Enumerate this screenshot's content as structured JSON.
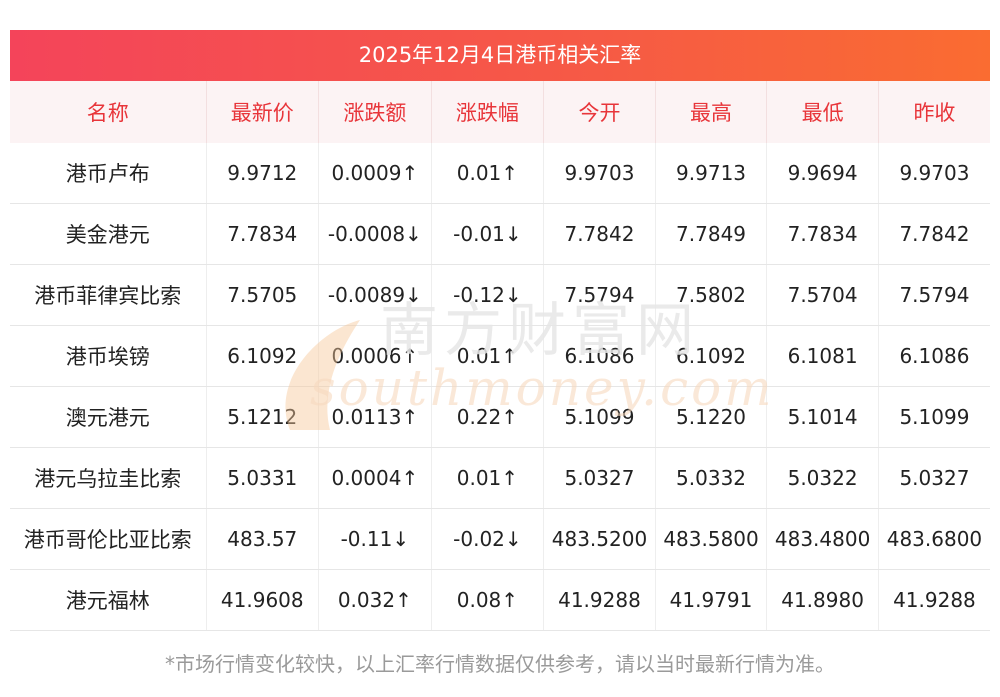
{
  "title": "2025年12月4日港币相关汇率",
  "headers": [
    "名称",
    "最新价",
    "涨跌额",
    "涨跌幅",
    "今开",
    "最高",
    "最低",
    "昨收"
  ],
  "rows": [
    {
      "name": "港币卢布",
      "latest": "9.9712",
      "change": "0.0009↑",
      "pct": "0.01↑",
      "open": "9.9703",
      "high": "9.9713",
      "low": "9.9694",
      "prev": "9.9703",
      "dir": "up"
    },
    {
      "name": "美金港元",
      "latest": "7.7834",
      "change": "-0.0008↓",
      "pct": "-0.01↓",
      "open": "7.7842",
      "high": "7.7849",
      "low": "7.7834",
      "prev": "7.7842",
      "dir": "down"
    },
    {
      "name": "港币菲律宾比索",
      "latest": "7.5705",
      "change": "-0.0089↓",
      "pct": "-0.12↓",
      "open": "7.5794",
      "high": "7.5802",
      "low": "7.5704",
      "prev": "7.5794",
      "dir": "down"
    },
    {
      "name": "港币埃镑",
      "latest": "6.1092",
      "change": "0.0006↑",
      "pct": "0.01↑",
      "open": "6.1086",
      "high": "6.1092",
      "low": "6.1081",
      "prev": "6.1086",
      "dir": "up"
    },
    {
      "name": "澳元港元",
      "latest": "5.1212",
      "change": "0.0113↑",
      "pct": "0.22↑",
      "open": "5.1099",
      "high": "5.1220",
      "low": "5.1014",
      "prev": "5.1099",
      "dir": "up"
    },
    {
      "name": "港元乌拉圭比索",
      "latest": "5.0331",
      "change": "0.0004↑",
      "pct": "0.01↑",
      "open": "5.0327",
      "high": "5.0332",
      "low": "5.0322",
      "prev": "5.0327",
      "dir": "up"
    },
    {
      "name": "港币哥伦比亚比索",
      "latest": "483.57",
      "change": "-0.11↓",
      "pct": "-0.02↓",
      "open": "483.5200",
      "high": "483.5800",
      "low": "483.4800",
      "prev": "483.6800",
      "dir": "down"
    },
    {
      "name": "港元福林",
      "latest": "41.9608",
      "change": "0.032↑",
      "pct": "0.08↑",
      "open": "41.9288",
      "high": "41.9791",
      "low": "41.8980",
      "prev": "41.9288",
      "dir": "up"
    }
  ],
  "watermark": {
    "cn": "南方财富网",
    "en": "southmoney.com"
  },
  "footnote": "*市场行情变化较快，以上汇率行情数据仅供参考，请以当时最新行情为准。",
  "colors": {
    "up": "#e8151b",
    "down": "#1d8a1d",
    "header_text": "#e8353a",
    "title_bg": "#f4445a"
  }
}
